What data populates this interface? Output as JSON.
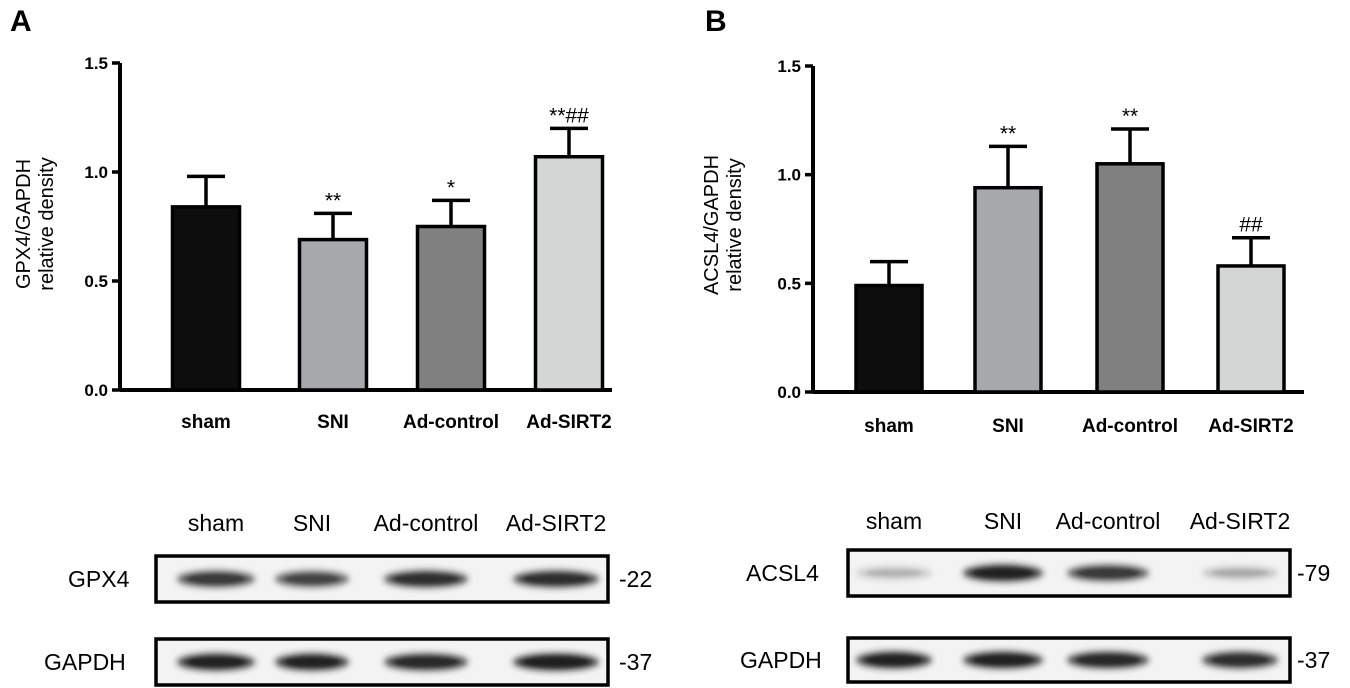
{
  "chart_data": [
    {
      "panel": "A",
      "type": "bar",
      "categories": [
        "sham",
        "SNI",
        "Ad-control",
        "Ad-SIRT2"
      ],
      "values": [
        0.84,
        0.69,
        0.75,
        1.07
      ],
      "errors": [
        0.14,
        0.12,
        0.12,
        0.13
      ],
      "significance": [
        "",
        "**",
        "*",
        "**##"
      ],
      "colors": [
        "#0d0d0d",
        "#a7a8ac",
        "#808080",
        "#d4d6d6"
      ],
      "ylabel": [
        "GPX4/GAPDH",
        "relative density"
      ],
      "xlabel": "",
      "ylim": [
        0,
        1.5
      ],
      "yticks": [
        "0.0",
        "0.5",
        "1.0",
        "1.5"
      ],
      "blot": {
        "lanes": [
          "sham",
          "SNI",
          "Ad-control",
          "Ad-SIRT2"
        ],
        "rows": [
          {
            "label": "GPX4",
            "mw": "-22",
            "intensity": [
              0.85,
              0.8,
              0.9,
              0.9
            ]
          },
          {
            "label": "GAPDH",
            "mw": "-37",
            "intensity": [
              0.95,
              0.95,
              0.92,
              0.97
            ]
          }
        ]
      }
    },
    {
      "panel": "B",
      "type": "bar",
      "categories": [
        "sham",
        "SNI",
        "Ad-control",
        "Ad-SIRT2"
      ],
      "values": [
        0.49,
        0.94,
        1.05,
        0.58
      ],
      "errors": [
        0.11,
        0.19,
        0.16,
        0.13
      ],
      "significance": [
        "",
        "**",
        "**",
        "##"
      ],
      "colors": [
        "#0d0d0d",
        "#a7a8ac",
        "#808080",
        "#d4d6d6"
      ],
      "ylabel": [
        "ACSL4/GAPDH",
        "relative density"
      ],
      "xlabel": "",
      "ylim": [
        0,
        1.5
      ],
      "yticks": [
        "0.0",
        "0.5",
        "1.0",
        "1.5"
      ],
      "blot": {
        "lanes": [
          "sham",
          "SNI",
          "Ad-control",
          "Ad-SIRT2"
        ],
        "rows": [
          {
            "label": "ACSL4",
            "mw": "-79",
            "intensity": [
              0.25,
              0.95,
              0.85,
              0.3
            ]
          },
          {
            "label": "GAPDH",
            "mw": "-37",
            "intensity": [
              0.95,
              0.95,
              0.92,
              0.9
            ]
          }
        ]
      }
    }
  ]
}
